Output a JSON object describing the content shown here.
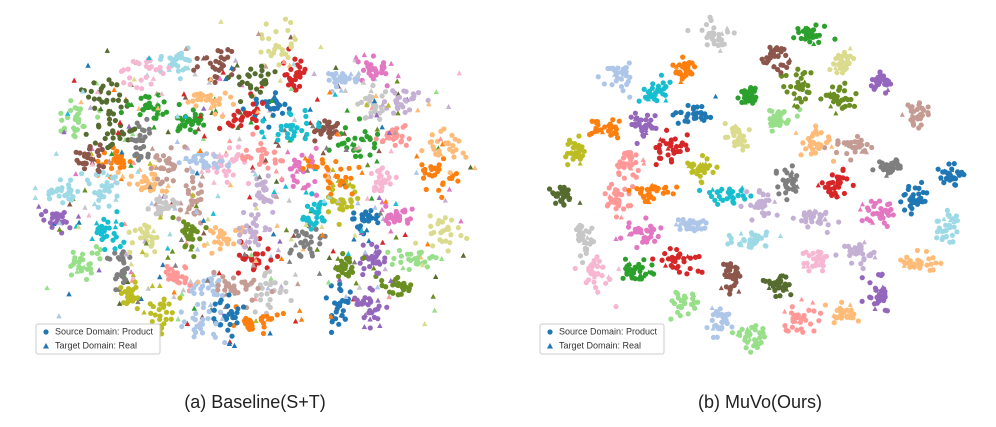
{
  "panels": [
    {
      "caption": "(a) Baseline(S+T)",
      "legend": [
        "Source Domain: Product",
        "Target Domain: Real"
      ]
    },
    {
      "caption": "(b) MuVo(Ours)",
      "legend": [
        "Source Domain: Product",
        "Target Domain: Real"
      ]
    }
  ]
}
